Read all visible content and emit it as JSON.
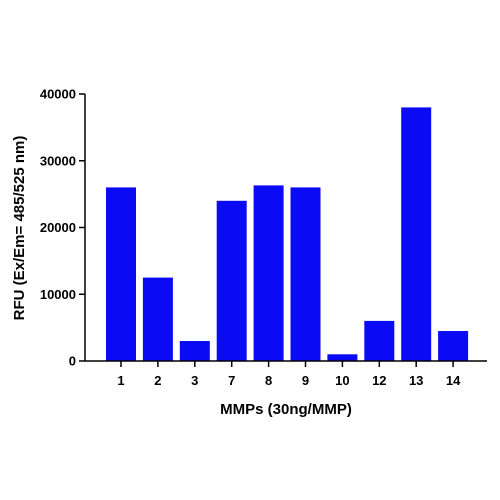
{
  "chart_data": {
    "type": "bar",
    "title": "",
    "xlabel": "MMPs (30ng/MMP)",
    "ylabel": "RFU (Ex/Em= 485/525 nm)",
    "categories": [
      "1",
      "2",
      "3",
      "7",
      "8",
      "9",
      "10",
      "12",
      "13",
      "14"
    ],
    "values": [
      26000,
      12500,
      3000,
      24000,
      26300,
      26000,
      1000,
      6000,
      38000,
      4500
    ],
    "ylim": [
      0,
      40000
    ],
    "yticks": [
      0,
      10000,
      20000,
      30000,
      40000
    ],
    "ytick_labels": [
      "0",
      "10000",
      "20000",
      "30000",
      "40000"
    ],
    "grid": false,
    "legend": "none",
    "bar_color": "#0a0af5"
  }
}
